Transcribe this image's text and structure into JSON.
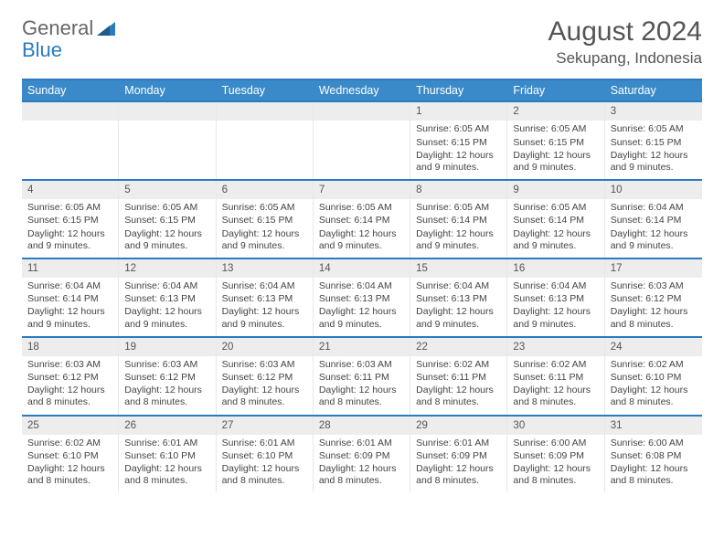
{
  "logo": {
    "word1": "General",
    "word2": "Blue"
  },
  "header": {
    "month": "August 2024",
    "location": "Sekupang, Indonesia"
  },
  "colors": {
    "accent": "#3a8ac9",
    "accent_border": "#2b7bbf",
    "grey_band": "#ededed"
  },
  "daynames": [
    "Sunday",
    "Monday",
    "Tuesday",
    "Wednesday",
    "Thursday",
    "Friday",
    "Saturday"
  ],
  "weeks": [
    [
      {
        "n": "",
        "sr": "",
        "ss": "",
        "dl": ""
      },
      {
        "n": "",
        "sr": "",
        "ss": "",
        "dl": ""
      },
      {
        "n": "",
        "sr": "",
        "ss": "",
        "dl": ""
      },
      {
        "n": "",
        "sr": "",
        "ss": "",
        "dl": ""
      },
      {
        "n": "1",
        "sr": "Sunrise: 6:05 AM",
        "ss": "Sunset: 6:15 PM",
        "dl": "Daylight: 12 hours and 9 minutes."
      },
      {
        "n": "2",
        "sr": "Sunrise: 6:05 AM",
        "ss": "Sunset: 6:15 PM",
        "dl": "Daylight: 12 hours and 9 minutes."
      },
      {
        "n": "3",
        "sr": "Sunrise: 6:05 AM",
        "ss": "Sunset: 6:15 PM",
        "dl": "Daylight: 12 hours and 9 minutes."
      }
    ],
    [
      {
        "n": "4",
        "sr": "Sunrise: 6:05 AM",
        "ss": "Sunset: 6:15 PM",
        "dl": "Daylight: 12 hours and 9 minutes."
      },
      {
        "n": "5",
        "sr": "Sunrise: 6:05 AM",
        "ss": "Sunset: 6:15 PM",
        "dl": "Daylight: 12 hours and 9 minutes."
      },
      {
        "n": "6",
        "sr": "Sunrise: 6:05 AM",
        "ss": "Sunset: 6:15 PM",
        "dl": "Daylight: 12 hours and 9 minutes."
      },
      {
        "n": "7",
        "sr": "Sunrise: 6:05 AM",
        "ss": "Sunset: 6:14 PM",
        "dl": "Daylight: 12 hours and 9 minutes."
      },
      {
        "n": "8",
        "sr": "Sunrise: 6:05 AM",
        "ss": "Sunset: 6:14 PM",
        "dl": "Daylight: 12 hours and 9 minutes."
      },
      {
        "n": "9",
        "sr": "Sunrise: 6:05 AM",
        "ss": "Sunset: 6:14 PM",
        "dl": "Daylight: 12 hours and 9 minutes."
      },
      {
        "n": "10",
        "sr": "Sunrise: 6:04 AM",
        "ss": "Sunset: 6:14 PM",
        "dl": "Daylight: 12 hours and 9 minutes."
      }
    ],
    [
      {
        "n": "11",
        "sr": "Sunrise: 6:04 AM",
        "ss": "Sunset: 6:14 PM",
        "dl": "Daylight: 12 hours and 9 minutes."
      },
      {
        "n": "12",
        "sr": "Sunrise: 6:04 AM",
        "ss": "Sunset: 6:13 PM",
        "dl": "Daylight: 12 hours and 9 minutes."
      },
      {
        "n": "13",
        "sr": "Sunrise: 6:04 AM",
        "ss": "Sunset: 6:13 PM",
        "dl": "Daylight: 12 hours and 9 minutes."
      },
      {
        "n": "14",
        "sr": "Sunrise: 6:04 AM",
        "ss": "Sunset: 6:13 PM",
        "dl": "Daylight: 12 hours and 9 minutes."
      },
      {
        "n": "15",
        "sr": "Sunrise: 6:04 AM",
        "ss": "Sunset: 6:13 PM",
        "dl": "Daylight: 12 hours and 9 minutes."
      },
      {
        "n": "16",
        "sr": "Sunrise: 6:04 AM",
        "ss": "Sunset: 6:13 PM",
        "dl": "Daylight: 12 hours and 9 minutes."
      },
      {
        "n": "17",
        "sr": "Sunrise: 6:03 AM",
        "ss": "Sunset: 6:12 PM",
        "dl": "Daylight: 12 hours and 8 minutes."
      }
    ],
    [
      {
        "n": "18",
        "sr": "Sunrise: 6:03 AM",
        "ss": "Sunset: 6:12 PM",
        "dl": "Daylight: 12 hours and 8 minutes."
      },
      {
        "n": "19",
        "sr": "Sunrise: 6:03 AM",
        "ss": "Sunset: 6:12 PM",
        "dl": "Daylight: 12 hours and 8 minutes."
      },
      {
        "n": "20",
        "sr": "Sunrise: 6:03 AM",
        "ss": "Sunset: 6:12 PM",
        "dl": "Daylight: 12 hours and 8 minutes."
      },
      {
        "n": "21",
        "sr": "Sunrise: 6:03 AM",
        "ss": "Sunset: 6:11 PM",
        "dl": "Daylight: 12 hours and 8 minutes."
      },
      {
        "n": "22",
        "sr": "Sunrise: 6:02 AM",
        "ss": "Sunset: 6:11 PM",
        "dl": "Daylight: 12 hours and 8 minutes."
      },
      {
        "n": "23",
        "sr": "Sunrise: 6:02 AM",
        "ss": "Sunset: 6:11 PM",
        "dl": "Daylight: 12 hours and 8 minutes."
      },
      {
        "n": "24",
        "sr": "Sunrise: 6:02 AM",
        "ss": "Sunset: 6:10 PM",
        "dl": "Daylight: 12 hours and 8 minutes."
      }
    ],
    [
      {
        "n": "25",
        "sr": "Sunrise: 6:02 AM",
        "ss": "Sunset: 6:10 PM",
        "dl": "Daylight: 12 hours and 8 minutes."
      },
      {
        "n": "26",
        "sr": "Sunrise: 6:01 AM",
        "ss": "Sunset: 6:10 PM",
        "dl": "Daylight: 12 hours and 8 minutes."
      },
      {
        "n": "27",
        "sr": "Sunrise: 6:01 AM",
        "ss": "Sunset: 6:10 PM",
        "dl": "Daylight: 12 hours and 8 minutes."
      },
      {
        "n": "28",
        "sr": "Sunrise: 6:01 AM",
        "ss": "Sunset: 6:09 PM",
        "dl": "Daylight: 12 hours and 8 minutes."
      },
      {
        "n": "29",
        "sr": "Sunrise: 6:01 AM",
        "ss": "Sunset: 6:09 PM",
        "dl": "Daylight: 12 hours and 8 minutes."
      },
      {
        "n": "30",
        "sr": "Sunrise: 6:00 AM",
        "ss": "Sunset: 6:09 PM",
        "dl": "Daylight: 12 hours and 8 minutes."
      },
      {
        "n": "31",
        "sr": "Sunrise: 6:00 AM",
        "ss": "Sunset: 6:08 PM",
        "dl": "Daylight: 12 hours and 8 minutes."
      }
    ]
  ]
}
